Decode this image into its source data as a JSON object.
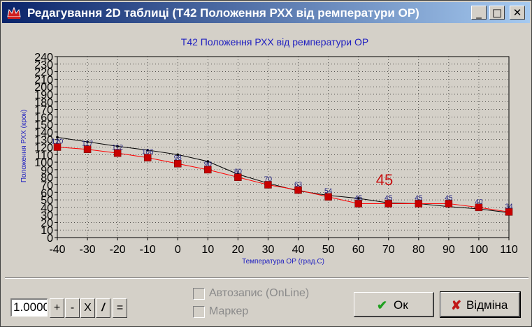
{
  "window": {
    "title": "Редагування 2D таблиці (T42 Положення РХХ від ремператури ОР)",
    "minimize_glyph": "_",
    "maximize_glyph": "□",
    "close_glyph": "✕"
  },
  "chart_data": {
    "type": "line",
    "title": "T42 Положення РХХ від ремператури ОР",
    "xlabel": "Температура ОР (град.С)",
    "ylabel": "Положення РХХ (крок)",
    "x": [
      -40,
      -30,
      -20,
      -10,
      0,
      10,
      20,
      30,
      40,
      50,
      60,
      70,
      80,
      90,
      100,
      110
    ],
    "xlim": [
      -40,
      110
    ],
    "ylim": [
      0,
      240
    ],
    "xticks": [
      "-40",
      "-30",
      "-20",
      "-10",
      "0",
      "10",
      "20",
      "30",
      "40",
      "50",
      "60",
      "70",
      "80",
      "90",
      "100",
      "110"
    ],
    "yticks": [
      "0",
      "10",
      "20",
      "30",
      "40",
      "50",
      "60",
      "70",
      "80",
      "90",
      "100",
      "110",
      "120",
      "130",
      "140",
      "150",
      "160",
      "170",
      "180",
      "190",
      "200",
      "210",
      "220",
      "230",
      "240"
    ],
    "grid": true,
    "series": [
      {
        "values": [
          133,
          127,
          121,
          116,
          110,
          101,
          84,
          72,
          62,
          56,
          52,
          46,
          45,
          41,
          38,
          33
        ],
        "color": "#000000",
        "markers": "small-dot"
      },
      {
        "values": [
          120,
          117,
          112,
          106,
          98,
          90,
          80,
          70,
          63,
          54,
          45,
          45,
          45,
          45,
          40,
          34
        ],
        "color": "#ff0000",
        "markers": "square",
        "marker_color": "#c80000",
        "labels": [
          "120",
          "117",
          "112",
          "106",
          "98",
          "90",
          "80",
          "70",
          "63",
          "54",
          "45",
          "45",
          "45",
          "45",
          "40",
          "34"
        ],
        "label_color": "#202080"
      }
    ],
    "annotation": {
      "text": "45",
      "color": "#c81414"
    }
  },
  "controls": {
    "value_input": "1.0000",
    "plus_label": "+",
    "minus_label": "-",
    "multiply_label": "X",
    "divide_label": "/",
    "equals_label": "=",
    "autosave_label": "Автозапис (OnLine)",
    "marker_label": "Маркер",
    "ok_label": "Ок",
    "cancel_label": "Відміна",
    "ok_icon": "check-icon",
    "cancel_icon": "x-icon"
  }
}
